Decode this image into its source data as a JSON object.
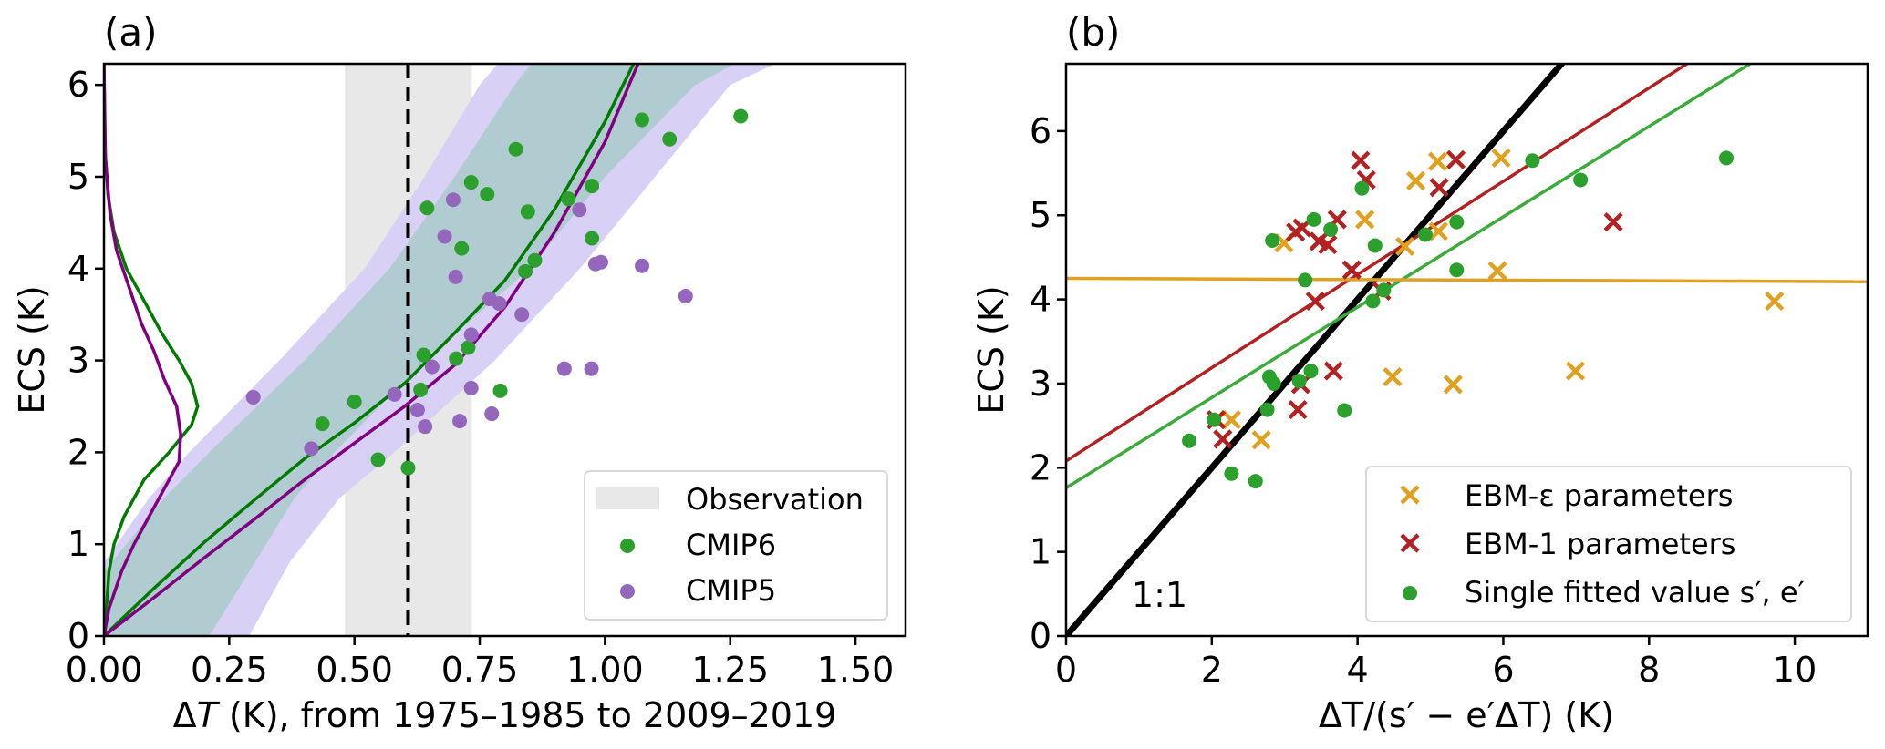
{
  "chart_data": [
    {
      "panel": "(a)",
      "type": "scatter",
      "xlabel": "ΔT (K), from 1975–1985 to 2009–2019",
      "xlabel_parts": {
        "delta": "Δ",
        "var": "T",
        "rest": " (K), from 1975–1985 to 2009–2019"
      },
      "ylabel": "ECS (K)",
      "xlim": [
        0,
        1.6
      ],
      "ylim": [
        0,
        6.23
      ],
      "xticks": [
        0.0,
        0.25,
        0.5,
        0.75,
        1.0,
        1.25,
        1.5
      ],
      "xtick_labels": [
        "0.00",
        "0.25",
        "0.50",
        "0.75",
        "1.00",
        "1.25",
        "1.50"
      ],
      "yticks": [
        0,
        1,
        2,
        3,
        4,
        5,
        6
      ],
      "ytick_labels": [
        "0",
        "1",
        "2",
        "3",
        "4",
        "5",
        "6"
      ],
      "grid": false,
      "legend_position": "lower-right",
      "legend": [
        {
          "label": "Observation",
          "kind": "patch",
          "color": "#e8e8e8"
        },
        {
          "label": "CMIP6",
          "kind": "dot",
          "color": "#2ca02c"
        },
        {
          "label": "CMIP5",
          "kind": "dot",
          "color": "#9467bd"
        }
      ],
      "observation": {
        "range": [
          0.481,
          0.734
        ],
        "best_estimate": 0.607,
        "color": "#e8e8e8",
        "line_color": "#000000"
      },
      "bands": [
        {
          "name": "CMIP5 range",
          "color": "#d9d0f5",
          "ecs": [
            0,
            0.8,
            1.5,
            2,
            3,
            4,
            5,
            6,
            6.23
          ],
          "lower_dT": [
            0.29,
            0.37,
            0.47,
            0.58,
            0.78,
            0.95,
            1.1,
            1.25,
            1.34
          ],
          "upper_dT": [
            0.0,
            0.0,
            0.09,
            0.17,
            0.35,
            0.52,
            0.64,
            0.75,
            0.786
          ]
        },
        {
          "name": "CMIP6 range",
          "color": "#a9cbca",
          "ecs": [
            0,
            0.7,
            1.5,
            2,
            3,
            4,
            5,
            6,
            6.23
          ],
          "lower_dT": [
            0.21,
            0.29,
            0.38,
            0.46,
            0.64,
            0.85,
            1.0,
            1.18,
            1.26
          ],
          "upper_dT": [
            0.0,
            0.0,
            0.12,
            0.21,
            0.4,
            0.57,
            0.7,
            0.82,
            0.853
          ]
        }
      ],
      "series": [
        {
          "name": "CMIP6 median",
          "kind": "line",
          "color": "#007a00",
          "x": [
            0.0,
            0.1,
            0.2,
            0.3,
            0.4,
            0.5,
            0.6,
            0.7,
            0.8,
            0.9,
            1.0,
            1.057
          ],
          "y": [
            0.0,
            0.52,
            1.02,
            1.48,
            1.93,
            2.32,
            2.75,
            3.3,
            3.87,
            4.65,
            5.6,
            6.23
          ]
        },
        {
          "name": "CMIP5 median",
          "kind": "line",
          "color": "#800080",
          "x": [
            0.0,
            0.1,
            0.2,
            0.3,
            0.4,
            0.5,
            0.6,
            0.7,
            0.8,
            0.9,
            1.0,
            1.066
          ],
          "y": [
            0.0,
            0.42,
            0.85,
            1.27,
            1.7,
            2.1,
            2.5,
            2.95,
            3.58,
            4.4,
            5.38,
            6.23
          ]
        },
        {
          "name": "CMIP6 ECS PDF",
          "kind": "pdf-line",
          "color": "#007a00",
          "ecs": [
            0,
            0.3,
            0.7,
            1.0,
            1.3,
            1.7,
            2.0,
            2.3,
            2.5,
            2.75,
            3.0,
            3.3,
            3.6,
            4.0,
            4.4,
            4.8,
            5.3,
            6.23
          ],
          "density": [
            0.0,
            0.005,
            0.01,
            0.02,
            0.04,
            0.08,
            0.13,
            0.175,
            0.187,
            0.175,
            0.15,
            0.115,
            0.085,
            0.045,
            0.02,
            0.008,
            0.002,
            0.0
          ]
        },
        {
          "name": "CMIP5 ECS PDF",
          "kind": "pdf-line",
          "color": "#800080",
          "ecs": [
            0,
            0.3,
            0.7,
            1.0,
            1.3,
            1.6,
            1.9,
            2.2,
            2.5,
            2.8,
            3.1,
            3.4,
            3.8,
            4.2,
            4.6,
            5.2,
            6.23
          ],
          "density": [
            0.0,
            0.01,
            0.035,
            0.06,
            0.09,
            0.12,
            0.15,
            0.153,
            0.145,
            0.12,
            0.1,
            0.075,
            0.05,
            0.025,
            0.012,
            0.003,
            0.0
          ]
        },
        {
          "name": "CMIP6",
          "kind": "dot",
          "color": "#2ca02c",
          "points": [
            [
              0.436,
              2.31
            ],
            [
              0.5,
              2.55
            ],
            [
              0.547,
              1.92
            ],
            [
              0.607,
              1.83
            ],
            [
              0.632,
              2.68
            ],
            [
              0.638,
              3.06
            ],
            [
              0.645,
              4.66
            ],
            [
              0.703,
              3.02
            ],
            [
              0.714,
              4.22
            ],
            [
              0.727,
              3.14
            ],
            [
              0.733,
              4.94
            ],
            [
              0.765,
              4.81
            ],
            [
              0.791,
              2.67
            ],
            [
              0.822,
              5.3
            ],
            [
              0.841,
              3.97
            ],
            [
              0.846,
              4.62
            ],
            [
              0.86,
              4.09
            ],
            [
              0.927,
              4.76
            ],
            [
              0.974,
              4.33
            ],
            [
              0.974,
              4.9
            ],
            [
              1.074,
              5.62
            ],
            [
              1.129,
              5.41
            ],
            [
              1.271,
              5.66
            ]
          ]
        },
        {
          "name": "CMIP5",
          "kind": "dot",
          "color": "#9467bd",
          "points": [
            [
              0.298,
              2.6
            ],
            [
              0.414,
              2.04
            ],
            [
              0.58,
              2.63
            ],
            [
              0.626,
              2.46
            ],
            [
              0.641,
              2.28
            ],
            [
              0.655,
              2.93
            ],
            [
              0.68,
              4.35
            ],
            [
              0.697,
              4.75
            ],
            [
              0.702,
              3.91
            ],
            [
              0.71,
              2.34
            ],
            [
              0.733,
              3.28
            ],
            [
              0.733,
              2.7
            ],
            [
              0.77,
              3.67
            ],
            [
              0.774,
              2.42
            ],
            [
              0.789,
              3.62
            ],
            [
              0.834,
              3.5
            ],
            [
              0.919,
              2.91
            ],
            [
              0.949,
              4.64
            ],
            [
              0.973,
              2.91
            ],
            [
              0.981,
              4.05
            ],
            [
              0.992,
              4.07
            ],
            [
              1.074,
              4.03
            ],
            [
              1.161,
              3.7
            ]
          ]
        }
      ]
    },
    {
      "panel": "(b)",
      "type": "scatter",
      "xlabel": "ΔT/(s′ − e′ΔT) (K)",
      "ylabel": "ECS (K)",
      "xlim": [
        0,
        11.0
      ],
      "ylim": [
        0,
        6.8
      ],
      "xticks": [
        0,
        2,
        4,
        6,
        8,
        10
      ],
      "xtick_labels": [
        "0",
        "2",
        "4",
        "6",
        "8",
        "10"
      ],
      "yticks": [
        0,
        1,
        2,
        3,
        4,
        5,
        6
      ],
      "ytick_labels": [
        "0",
        "1",
        "2",
        "3",
        "4",
        "5",
        "6"
      ],
      "grid": false,
      "legend_position": "lower-right",
      "legend": [
        {
          "label": "EBM-ε parameters",
          "kind": "x",
          "color": "#e0a020"
        },
        {
          "label": "EBM-1 parameters",
          "kind": "x",
          "color": "#b22222"
        },
        {
          "label": "Single fitted value s′, e′",
          "kind": "dot",
          "color": "#2ca02c"
        }
      ],
      "annotations": [
        {
          "text": "1:1",
          "x": 0.9,
          "y": 0.5
        }
      ],
      "lines": [
        {
          "name": "1:1",
          "color": "#000000",
          "intercept": 0.0,
          "slope": 1.0
        },
        {
          "name": "EBM-1 fit",
          "color": "#b22222",
          "intercept": 2.08,
          "slope": 0.554
        },
        {
          "name": "Single fitted fit",
          "color": "#3cab3c",
          "intercept": 1.76,
          "slope": 0.537
        },
        {
          "name": "EBM-ε fit",
          "color": "#e0a020",
          "intercept": 4.25,
          "slope": -0.0036
        }
      ],
      "series": [
        {
          "name": "EBM-ε parameters",
          "kind": "x",
          "color": "#e0a020",
          "points": [
            [
              2.99,
              4.67
            ],
            [
              2.27,
              2.57
            ],
            [
              2.68,
              2.33
            ],
            [
              4.1,
              4.95
            ],
            [
              4.48,
              3.08
            ],
            [
              4.65,
              4.63
            ],
            [
              4.8,
              5.41
            ],
            [
              5.1,
              5.64
            ],
            [
              5.11,
              4.81
            ],
            [
              5.31,
              2.99
            ],
            [
              5.97,
              5.68
            ],
            [
              5.92,
              4.34
            ],
            [
              6.99,
              3.15
            ],
            [
              9.72,
              3.98
            ]
          ]
        },
        {
          "name": "EBM-1 parameters",
          "kind": "x",
          "color": "#b22222",
          "points": [
            [
              2.06,
              2.57
            ],
            [
              2.15,
              2.34
            ],
            [
              3.15,
              4.8
            ],
            [
              3.24,
              4.85
            ],
            [
              3.18,
              2.69
            ],
            [
              3.22,
              2.99
            ],
            [
              3.42,
              3.98
            ],
            [
              3.47,
              4.69
            ],
            [
              3.59,
              4.65
            ],
            [
              3.67,
              3.15
            ],
            [
              3.72,
              4.95
            ],
            [
              3.92,
              4.35
            ],
            [
              4.04,
              5.65
            ],
            [
              4.12,
              5.42
            ],
            [
              4.33,
              4.1
            ],
            [
              5.12,
              5.33
            ],
            [
              5.35,
              5.66
            ],
            [
              7.51,
              4.92
            ]
          ]
        },
        {
          "name": "Single fitted value s′, e′",
          "kind": "dot",
          "color": "#2ca02c",
          "points": [
            [
              1.69,
              2.32
            ],
            [
              2.03,
              2.57
            ],
            [
              2.27,
              1.93
            ],
            [
              2.6,
              1.84
            ],
            [
              2.76,
              2.69
            ],
            [
              2.79,
              3.08
            ],
            [
              2.83,
              4.7
            ],
            [
              2.85,
              3.0
            ],
            [
              3.2,
              3.03
            ],
            [
              3.28,
              4.23
            ],
            [
              3.36,
              3.15
            ],
            [
              3.4,
              4.95
            ],
            [
              3.63,
              4.83
            ],
            [
              3.82,
              2.68
            ],
            [
              4.06,
              5.32
            ],
            [
              4.21,
              3.98
            ],
            [
              4.24,
              4.64
            ],
            [
              4.36,
              4.11
            ],
            [
              4.93,
              4.77
            ],
            [
              5.36,
              4.35
            ],
            [
              5.36,
              4.92
            ],
            [
              6.4,
              5.65
            ],
            [
              7.06,
              5.42
            ],
            [
              9.06,
              5.68
            ]
          ]
        }
      ]
    }
  ]
}
